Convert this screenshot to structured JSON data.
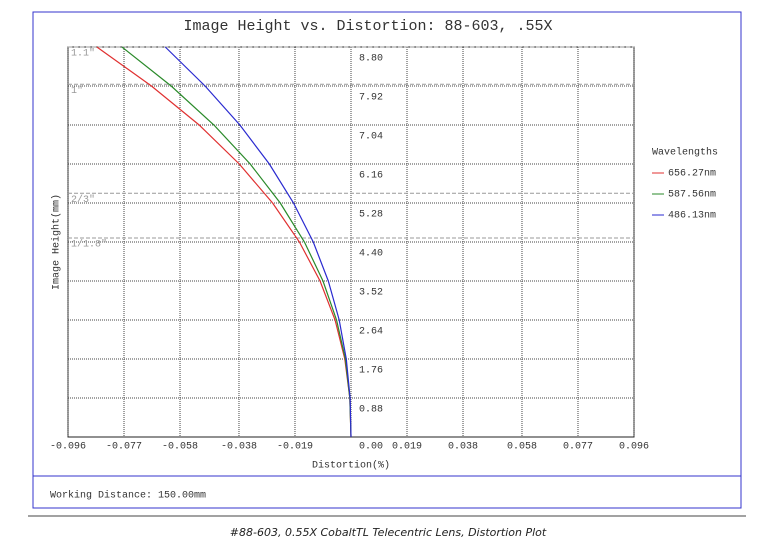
{
  "chart_data": {
    "type": "line",
    "title": "Image Height vs. Distortion: 88-603, .55X",
    "x_label": "Distortion(%)",
    "y_label": "Image Height(mm)",
    "y": [
      0,
      0.88,
      1.76,
      2.64,
      3.52,
      4.4,
      5.28,
      6.16,
      7.04,
      7.92,
      8.8
    ],
    "series": [
      {
        "name": "656.27nm",
        "color": "#e03030",
        "values": [
          0,
          -0.0004,
          -0.0021,
          -0.0054,
          -0.0105,
          -0.0175,
          -0.0266,
          -0.0379,
          -0.0515,
          -0.0677,
          -0.0862
        ]
      },
      {
        "name": "587.56nm",
        "color": "#2a8a2a",
        "values": [
          0,
          -0.0004,
          -0.0019,
          -0.0049,
          -0.0095,
          -0.0158,
          -0.024,
          -0.0342,
          -0.0465,
          -0.061,
          -0.0777
        ]
      },
      {
        "name": "486.13nm",
        "color": "#2a2ad0",
        "values": [
          0,
          -0.0003,
          -0.0016,
          -0.004,
          -0.0077,
          -0.0128,
          -0.0195,
          -0.0277,
          -0.0377,
          -0.0495,
          -0.063
        ]
      }
    ],
    "xlim": [
      -0.096,
      0.096
    ],
    "ylim": [
      0,
      8.8
    ],
    "xticks": [
      -0.096,
      -0.077,
      -0.058,
      -0.038,
      -0.019,
      {
        "value": 0,
        "label": "0.00"
      },
      0.019,
      0.038,
      0.058,
      0.077,
      0.096
    ],
    "yticks": [
      0.88,
      1.76,
      2.64,
      3.52,
      {
        "value": 4.4,
        "label": "4.40"
      },
      5.28,
      6.16,
      7.04,
      7.92,
      {
        "value": 8.8,
        "label": "8.80"
      }
    ],
    "grid": true,
    "legend_title": "Wavelengths",
    "legend_position": "right",
    "sensor_lines": [
      {
        "label": "1.1\"",
        "value": 8.8
      },
      {
        "label": "1\"",
        "value": 7.96
      },
      {
        "label": "2/3\"",
        "value": 5.5
      },
      {
        "label": "1/1.8\"",
        "value": 4.49
      }
    ],
    "footer": "Working Distance: 150.00mm",
    "caption": "#88-603, 0.55X CobaltTL Telecentric Lens, Distortion Plot"
  }
}
